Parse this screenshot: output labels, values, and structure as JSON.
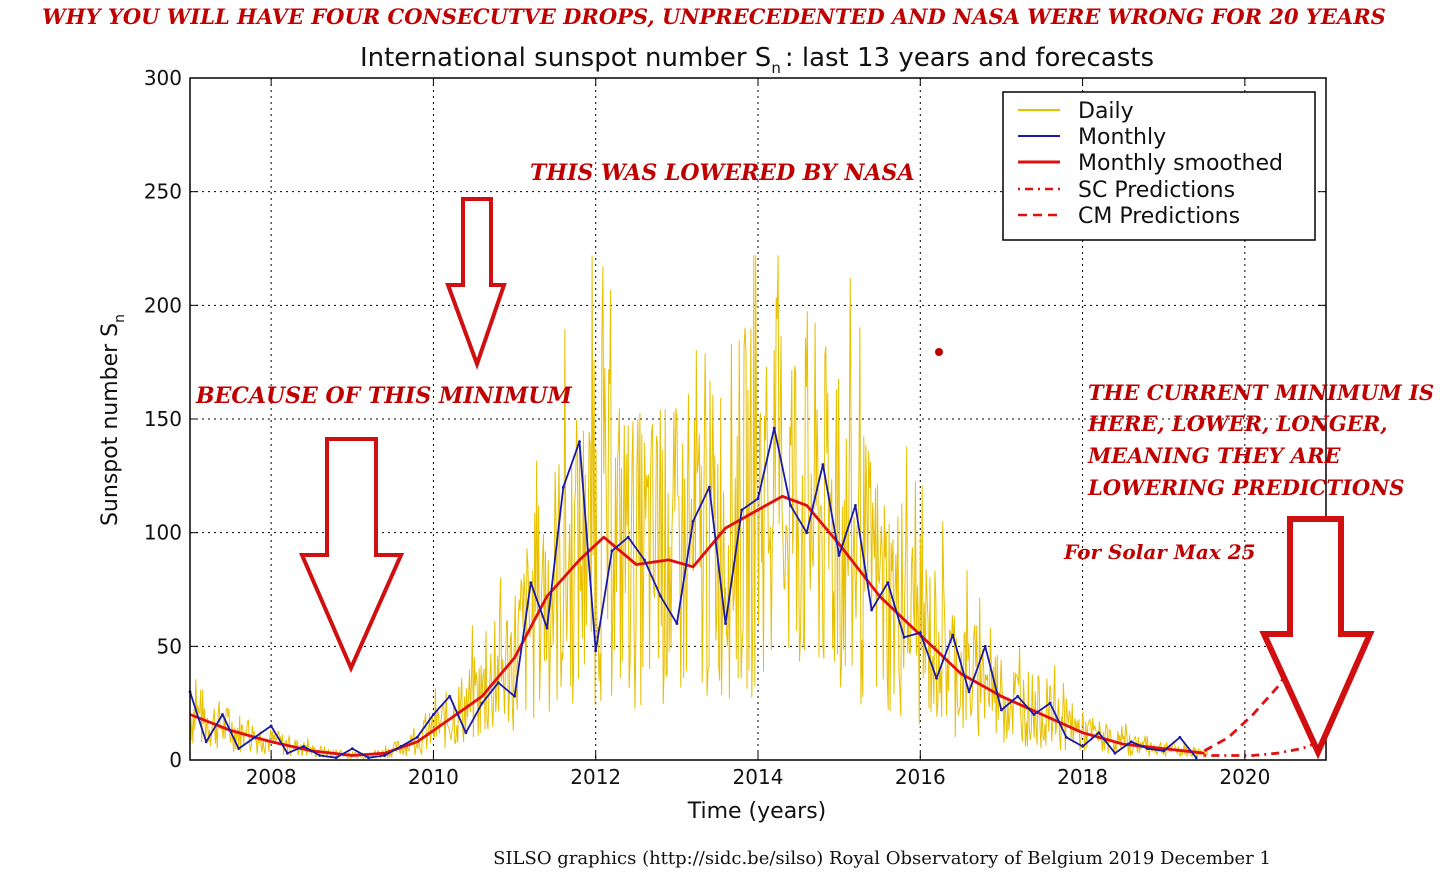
{
  "header": {
    "banner": "WHY YOU WILL HAVE FOUR CONSECUTVE DROPS,  UNPRECEDENTED AND NASA WERE WRONG FOR 20 YEARS",
    "credit": "SILSO graphics (http://sidc.be/silso)  Royal Observatory of Belgium  2019 December 1"
  },
  "annotations": {
    "lowered": "THIS WAS LOWERED BY NASA",
    "minimum": "BECAUSE OF THIS MINIMUM",
    "current_1": "THE CURRENT MINIMUM IS",
    "current_2": "HERE, LOWER, LONGER,",
    "current_3": "MEANING THEY ARE",
    "current_4": "LOWERING PREDICTIONS",
    "solarmax": "For Solar Max 25"
  },
  "colors": {
    "daily": "#e8c000",
    "monthly": "#1a1aa8",
    "smoothed": "#e01010",
    "annotation": "#c00000"
  },
  "chart_data": {
    "type": "line",
    "title": "International sunspot number S",
    "title_sub": "n",
    "title_suffix": ": last 13 years and forecasts",
    "xlabel": "Time (years)",
    "ylabel": "Sunspot number S",
    "ylabel_sub": "n",
    "xlim": [
      2007.0,
      2021.0
    ],
    "ylim": [
      0,
      300
    ],
    "xticks": [
      2008,
      2010,
      2012,
      2014,
      2016,
      2018,
      2020
    ],
    "yticks": [
      0,
      50,
      100,
      150,
      200,
      250,
      300
    ],
    "grid": true,
    "legend_position": "top-right",
    "legend": [
      "Daily",
      "Monthly",
      "Monthly smoothed",
      "SC Predictions",
      "CM Predictions"
    ],
    "series": [
      {
        "name": "Monthly smoothed",
        "x": [
          2007.0,
          2007.5,
          2008.0,
          2008.5,
          2009.0,
          2009.4,
          2009.8,
          2010.2,
          2010.6,
          2011.0,
          2011.4,
          2011.8,
          2012.1,
          2012.5,
          2012.9,
          2013.2,
          2013.6,
          2014.0,
          2014.3,
          2014.6,
          2015.0,
          2015.5,
          2016.0,
          2016.5,
          2017.0,
          2017.5,
          2018.0,
          2018.5,
          2019.0,
          2019.5
        ],
        "values": [
          20,
          13,
          8,
          4,
          2,
          3,
          8,
          18,
          28,
          45,
          72,
          88,
          98,
          86,
          88,
          85,
          102,
          110,
          116,
          112,
          95,
          72,
          55,
          38,
          28,
          20,
          12,
          7,
          5,
          3
        ]
      },
      {
        "name": "Monthly",
        "x": [
          2007.0,
          2007.2,
          2007.4,
          2007.6,
          2007.8,
          2008.0,
          2008.2,
          2008.4,
          2008.6,
          2008.8,
          2009.0,
          2009.2,
          2009.4,
          2009.6,
          2009.8,
          2010.0,
          2010.2,
          2010.4,
          2010.6,
          2010.8,
          2011.0,
          2011.2,
          2011.4,
          2011.6,
          2011.8,
          2012.0,
          2012.2,
          2012.4,
          2012.6,
          2012.8,
          2013.0,
          2013.2,
          2013.4,
          2013.6,
          2013.8,
          2014.0,
          2014.2,
          2014.4,
          2014.6,
          2014.8,
          2015.0,
          2015.2,
          2015.4,
          2015.6,
          2015.8,
          2016.0,
          2016.2,
          2016.4,
          2016.6,
          2016.8,
          2017.0,
          2017.2,
          2017.4,
          2017.6,
          2017.8,
          2018.0,
          2018.2,
          2018.4,
          2018.6,
          2018.8,
          2019.0,
          2019.2,
          2019.4
        ],
        "values": [
          30,
          8,
          20,
          5,
          10,
          15,
          3,
          6,
          2,
          1,
          5,
          1,
          2,
          6,
          10,
          20,
          28,
          12,
          25,
          34,
          28,
          78,
          58,
          120,
          140,
          48,
          92,
          98,
          88,
          72,
          60,
          105,
          120,
          60,
          110,
          115,
          146,
          112,
          100,
          130,
          90,
          112,
          66,
          78,
          54,
          56,
          36,
          55,
          30,
          50,
          22,
          28,
          20,
          25,
          10,
          6,
          12,
          3,
          8,
          5,
          4,
          10,
          1
        ]
      },
      {
        "name": "CM Predictions",
        "x": [
          2019.5,
          2019.8,
          2020.1,
          2020.4,
          2020.7,
          2021.0
        ],
        "values": [
          4,
          10,
          20,
          32,
          48,
          66
        ]
      },
      {
        "name": "SC Predictions",
        "x": [
          2019.5,
          2019.8,
          2020.1,
          2020.4,
          2020.7,
          2021.0
        ],
        "values": [
          2,
          2,
          2,
          3,
          5,
          9
        ]
      }
    ]
  }
}
